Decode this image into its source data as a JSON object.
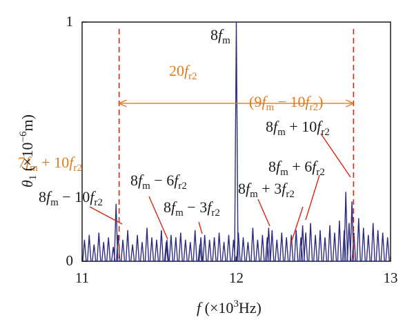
{
  "chart_data": {
    "type": "line",
    "x_tick_labels": [
      "11",
      "12",
      "13"
    ],
    "y_tick_labels": [
      "0",
      "1"
    ],
    "xlim": [
      11,
      13
    ],
    "ylim": [
      0,
      1
    ],
    "xlabel": {
      "var": "f",
      "unit": "(×10",
      "exp": "3",
      "unit2": "Hz)"
    },
    "ylabel": {
      "var": "θ",
      "sub": "1",
      "unit": "(×10",
      "exp": "−6",
      "unit2": "m)"
    },
    "series_x_start": 11.015,
    "series_x_step": 0.0312,
    "series_peaks": [
      0.09,
      0.11,
      0.07,
      0.12,
      0.08,
      0.1,
      0.06,
      0.11,
      0.09,
      0.13,
      0.07,
      0.11,
      0.08,
      0.14,
      0.1,
      0.09,
      0.13,
      0.08,
      0.11,
      0.1,
      0.12,
      0.09,
      0.08,
      0.13,
      0.07,
      0.11,
      0.09,
      0.1,
      0.12,
      0.08,
      0.11,
      0.09,
      0.12,
      0.1,
      0.08,
      0.14,
      0.09,
      0.11,
      0.1,
      0.13,
      0.09,
      0.12,
      0.1,
      0.11,
      0.13,
      0.1,
      0.12,
      0.16,
      0.11,
      0.13,
      0.1,
      0.15,
      0.12,
      0.17,
      0.13,
      0.16,
      0.12,
      0.18,
      0.14,
      0.11,
      0.16,
      0.13,
      0.12,
      0.1
    ],
    "special_peaks": [
      {
        "x": 11.22,
        "y": 0.24
      },
      {
        "x": 11.55,
        "y": 0.09
      },
      {
        "x": 11.77,
        "y": 0.1
      },
      {
        "x": 12.0,
        "y": 1.0
      },
      {
        "x": 12.21,
        "y": 0.14
      },
      {
        "x": 12.43,
        "y": 0.15
      },
      {
        "x": 12.71,
        "y": 0.29
      },
      {
        "x": 12.75,
        "y": 0.25
      }
    ],
    "dashed_lines_x": [
      11.24,
      12.76
    ],
    "range_arrow": {
      "x1": 11.24,
      "x2": 12.76,
      "y": 0.66
    },
    "annotations": [
      {
        "text": "8",
        "it": "f",
        "sub": "m",
        "tail": "",
        "color": "#1a1a1a"
      },
      {
        "text": "20",
        "it": "f",
        "sub": "r2",
        "tail": "",
        "color": "#e07a1f"
      },
      {
        "text": "(9",
        "it": "f",
        "sub": "m",
        "tail": " − 10",
        "it2": "f",
        "sub2": "r2",
        "tail2": ")",
        "color": "#e07a1f"
      },
      {
        "text": "8",
        "it": "f",
        "sub": "m",
        "tail": " + 10",
        "it2": "f",
        "sub2": "r2",
        "tail2": "",
        "color": "#1a1a1a"
      },
      {
        "text": "7",
        "it": "f",
        "sub": "m",
        "tail": " + 10",
        "it2": "f",
        "sub2": "r2",
        "tail2": "",
        "color": "#e07a1f"
      },
      {
        "text": "8",
        "it": "f",
        "sub": "m",
        "tail": " + 6",
        "it2": "f",
        "sub2": "r2",
        "tail2": "",
        "color": "#1a1a1a"
      },
      {
        "text": "8",
        "it": "f",
        "sub": "m",
        "tail": " − 6",
        "it2": "f",
        "sub2": "r2",
        "tail2": "",
        "color": "#1a1a1a"
      },
      {
        "text": "8",
        "it": "f",
        "sub": "m",
        "tail": " + 3",
        "it2": "f",
        "sub2": "r2",
        "tail2": "",
        "color": "#1a1a1a"
      },
      {
        "text": "8",
        "it": "f",
        "sub": "m",
        "tail": " − 10",
        "it2": "f",
        "sub2": "r2",
        "tail2": "",
        "color": "#1a1a1a"
      },
      {
        "text": "8",
        "it": "f",
        "sub": "m",
        "tail": " − 3",
        "it2": "f",
        "sub2": "r2",
        "tail2": "",
        "color": "#1a1a1a"
      }
    ],
    "colors": {
      "series": "#2b2b7f",
      "marker": "#d9230f",
      "accent": "#e07a1f",
      "axis": "#1a1a1a"
    }
  }
}
